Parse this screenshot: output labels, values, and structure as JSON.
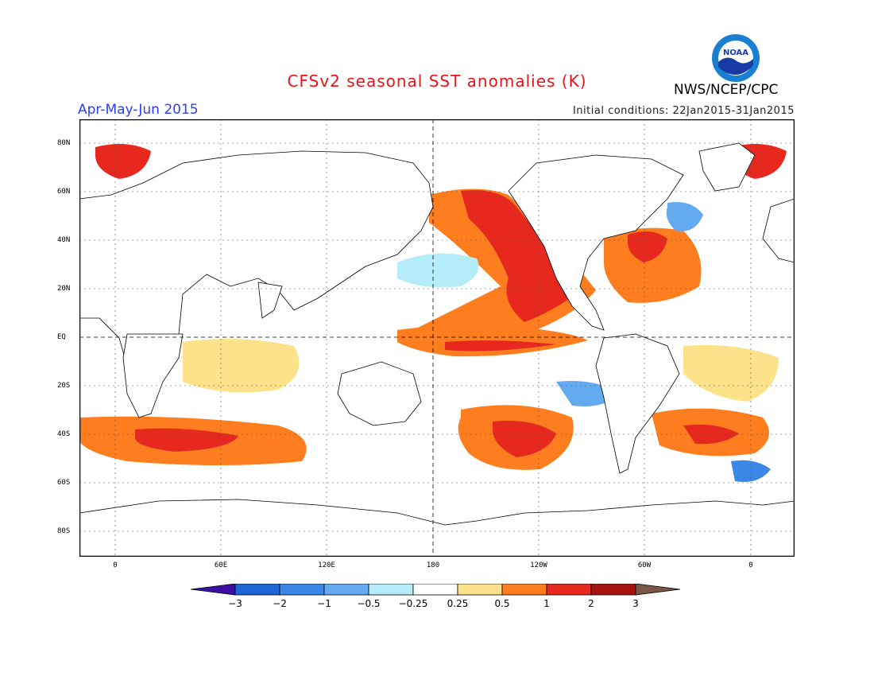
{
  "header": {
    "title": "CFSv2 seasonal SST anomalies (K)",
    "season": "Apr-May-Jun 2015",
    "initial_conditions": "Initial conditions: 22Jan2015-31Jan2015",
    "agency": "NWS/NCEP/CPC",
    "logo_text": "NOAA"
  },
  "axes": {
    "lat_ticks": [
      "80N",
      "60N",
      "40N",
      "20N",
      "EQ",
      "20S",
      "40S",
      "60S",
      "80S"
    ],
    "lon_ticks": [
      "0",
      "60E",
      "120E",
      "180",
      "120W",
      "60W",
      "0"
    ]
  },
  "colorbar": {
    "labels": [
      "-3",
      "-2",
      "-1",
      "-0.5",
      "-0.25",
      "0.25",
      "0.5",
      "1",
      "2",
      "3"
    ],
    "colors": [
      "#3b0fa5",
      "#1f64d4",
      "#3987e6",
      "#64aaf0",
      "#b4ecf8",
      "#ffffff",
      "#fde28a",
      "#fe7d1e",
      "#e6281e",
      "#a5140f",
      "#7a5646"
    ]
  }
}
